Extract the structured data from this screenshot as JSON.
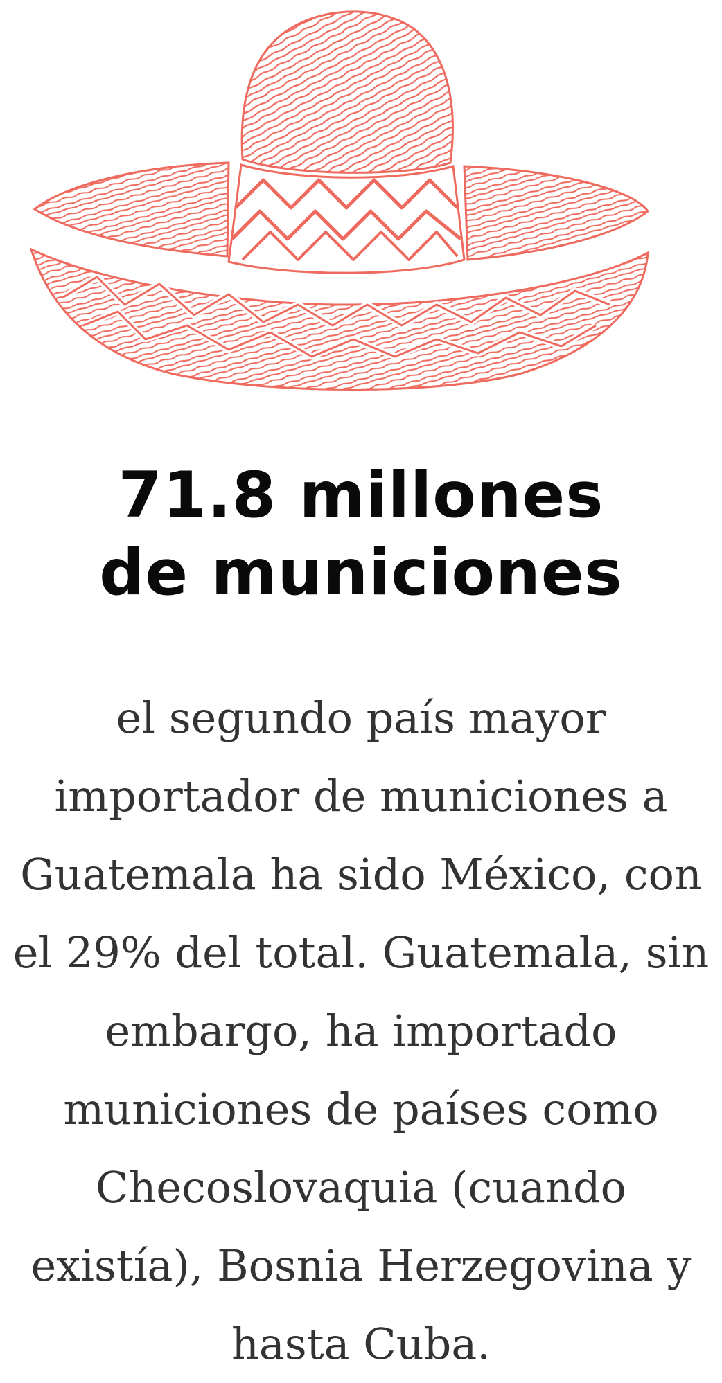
{
  "colors": {
    "illustration": "#ef6a5e",
    "headline": "#0a0a0a",
    "body": "#333333",
    "background": "#ffffff"
  },
  "illustration": {
    "icon": "sombrero-icon"
  },
  "headline": {
    "lines": [
      "71.8 millones",
      "de municiones"
    ]
  },
  "body": {
    "lines": [
      "el segundo país mayor",
      "importador de municiones a",
      "Guatemala ha sido México, con",
      "el 29% del total. Guatemala, sin",
      "embargo, ha importado",
      "municiones de países como",
      "Checoslovaquia (cuando",
      "existía), Bosnia Herzegovina y",
      "hasta Cuba."
    ]
  }
}
